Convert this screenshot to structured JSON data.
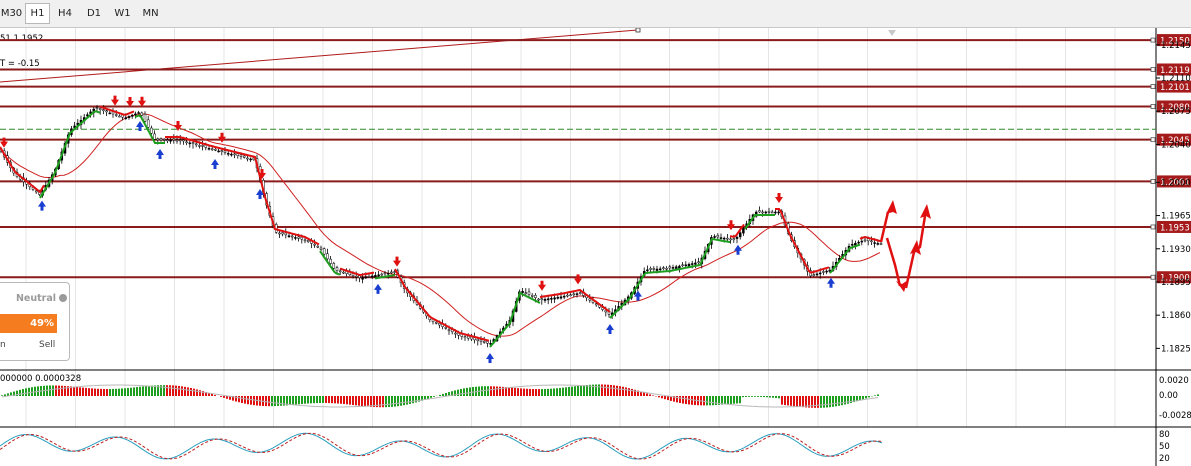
{
  "toolbar": {
    "timeframes": [
      {
        "label": "M30",
        "active": false
      },
      {
        "label": "H1",
        "active": true
      },
      {
        "label": "H4",
        "active": false
      },
      {
        "label": "D1",
        "active": false
      },
      {
        "label": "W1",
        "active": false
      },
      {
        "label": "MN",
        "active": false
      }
    ]
  },
  "chart": {
    "info_line1": "51 1.1952",
    "info_line2": "T = -0.15",
    "price_axis": {
      "min": 1.181,
      "max": 1.218,
      "ticks": [
        "1.2145",
        "1.2110",
        "1.2075",
        "1.2040",
        "1.2000",
        "1.1965",
        "1.1930",
        "1.1895",
        "1.1860",
        "1.1825"
      ]
    },
    "levels": [
      {
        "price": 1.215,
        "label": "1.2150"
      },
      {
        "price": 1.2119,
        "label": "1.2119"
      },
      {
        "price": 1.2101,
        "label": "1.2101"
      },
      {
        "price": 1.208,
        "label": "1.2080"
      },
      {
        "price": 1.2045,
        "label": "1.2045"
      },
      {
        "price": 1.2001,
        "label": "1.2001"
      },
      {
        "price": 1.1953,
        "label": "1.1953"
      },
      {
        "price": 1.19,
        "label": "1.1900"
      }
    ],
    "dashed_level": 1.2056,
    "colors": {
      "level": "#8b1a1a",
      "bull": "#1e9e1e",
      "bear": "#e01010",
      "ma": "#d02020",
      "axis_label_bg": "#a51a1a"
    }
  },
  "sentiment_panel": {
    "neutral_label": "Neutral",
    "percent": "49%",
    "percent_value": 49,
    "buy_label": "n",
    "sell_label": "Sell"
  },
  "indicator1": {
    "header": "000000 0.0000328",
    "ticks": [
      "0.0020",
      "0.00",
      "-0.0028"
    ]
  },
  "indicator2": {
    "ticks": [
      "80",
      "50",
      "20"
    ]
  }
}
